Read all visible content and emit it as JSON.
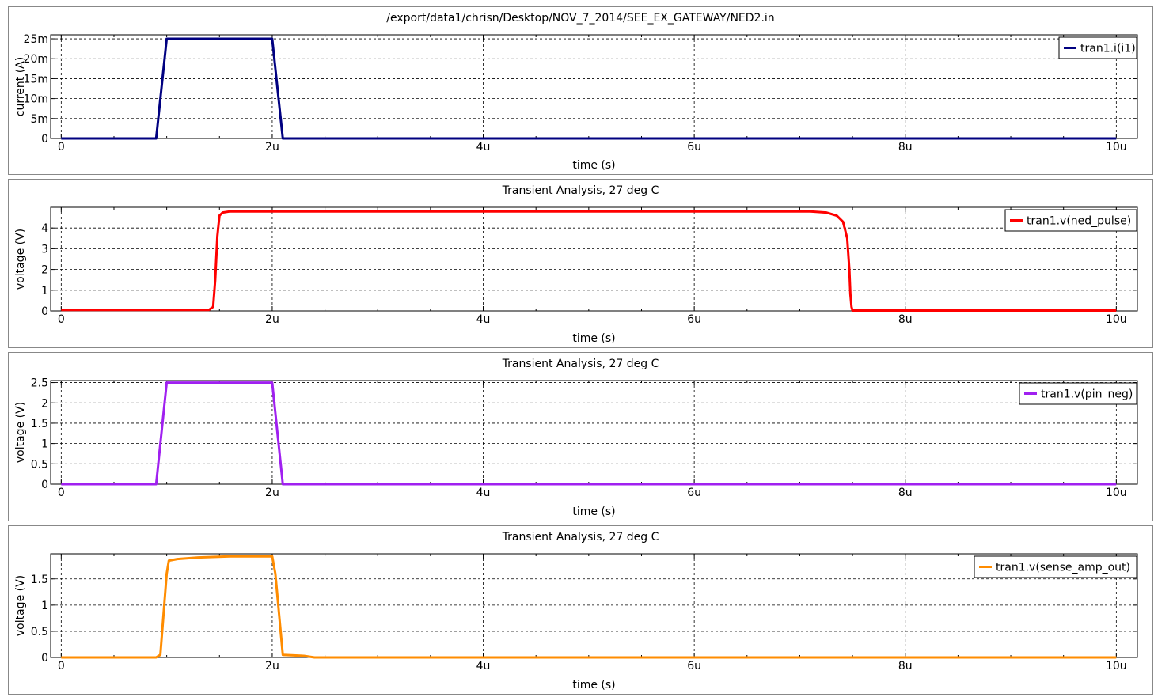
{
  "chart_data": [
    {
      "type": "line",
      "title": "/export/data1/chrisn/Desktop/NOV_7_2014/SEE_EX_GATEWAY/NED2.in",
      "xlabel": "time (s)",
      "ylabel": "current (A)",
      "xlim": [
        -0.1,
        10.2
      ],
      "ylim": [
        0,
        0.026
      ],
      "x_ticks": [
        0,
        2,
        4,
        6,
        8,
        10
      ],
      "x_tick_labels": [
        "0",
        "2u",
        "4u",
        "6u",
        "8u",
        "10u"
      ],
      "y_ticks": [
        0,
        0.005,
        0.01,
        0.015,
        0.02,
        0.025
      ],
      "y_tick_labels": [
        "0",
        "5m",
        "10m",
        "15m",
        "20m",
        "25m"
      ],
      "grid": true,
      "legend_position": "top-right",
      "series": [
        {
          "name": "tran1.i(i1)",
          "color": "#000080",
          "x": [
            0,
            0.9,
            1.0,
            2.0,
            2.1,
            10
          ],
          "y": [
            0,
            0,
            0.025,
            0.025,
            0,
            0
          ]
        }
      ]
    },
    {
      "type": "line",
      "title": "Transient Analysis, 27 deg C",
      "xlabel": "time (s)",
      "ylabel": "voltage (V)",
      "xlim": [
        -0.1,
        10.2
      ],
      "ylim": [
        0,
        5.0
      ],
      "x_ticks": [
        0,
        2,
        4,
        6,
        8,
        10
      ],
      "x_tick_labels": [
        "0",
        "2u",
        "4u",
        "6u",
        "8u",
        "10u"
      ],
      "y_ticks": [
        0,
        1,
        2,
        3,
        4
      ],
      "y_tick_labels": [
        "0",
        "1",
        "2",
        "3",
        "4"
      ],
      "grid": true,
      "legend_position": "top-right",
      "series": [
        {
          "name": "tran1.v(ned_pulse)",
          "color": "#ff0000",
          "x": [
            0,
            1.4,
            1.44,
            1.46,
            1.48,
            1.5,
            1.53,
            1.6,
            2,
            7.1,
            7.25,
            7.35,
            7.41,
            7.45,
            7.47,
            7.48,
            7.49,
            7.5,
            10
          ],
          "y": [
            0.05,
            0.05,
            0.2,
            1.5,
            3.6,
            4.6,
            4.75,
            4.8,
            4.8,
            4.8,
            4.75,
            4.6,
            4.3,
            3.5,
            2.0,
            0.8,
            0.2,
            0.02,
            0.02
          ]
        }
      ]
    },
    {
      "type": "line",
      "title": "Transient Analysis, 27 deg C",
      "xlabel": "time (s)",
      "ylabel": "voltage (V)",
      "xlim": [
        -0.1,
        10.2
      ],
      "ylim": [
        0,
        2.55
      ],
      "x_ticks": [
        0,
        2,
        4,
        6,
        8,
        10
      ],
      "x_tick_labels": [
        "0",
        "2u",
        "4u",
        "6u",
        "8u",
        "10u"
      ],
      "y_ticks": [
        0,
        0.5,
        1,
        1.5,
        2,
        2.5
      ],
      "y_tick_labels": [
        "0",
        "0.5",
        "1",
        "1.5",
        "2",
        "2.5"
      ],
      "grid": true,
      "legend_position": "top-right",
      "series": [
        {
          "name": "tran1.v(pin_neg)",
          "color": "#a020f0",
          "x": [
            0,
            0.9,
            1.0,
            2.0,
            2.1,
            10
          ],
          "y": [
            0,
            0,
            2.5,
            2.5,
            0,
            0
          ]
        }
      ]
    },
    {
      "type": "line",
      "title": "Transient Analysis, 27 deg C",
      "xlabel": "time (s)",
      "ylabel": "voltage (V)",
      "xlim": [
        -0.1,
        10.2
      ],
      "ylim": [
        0,
        1.98
      ],
      "x_ticks": [
        0,
        2,
        4,
        6,
        8,
        10
      ],
      "x_tick_labels": [
        "0",
        "2u",
        "4u",
        "6u",
        "8u",
        "10u"
      ],
      "y_ticks": [
        0,
        0.5,
        1,
        1.5
      ],
      "y_tick_labels": [
        "0",
        "0.5",
        "1",
        "1.5"
      ],
      "grid": true,
      "legend_position": "top-right",
      "series": [
        {
          "name": "tran1.v(sense_amp_out)",
          "color": "#ff8c00",
          "x": [
            0,
            0.9,
            0.94,
            1.0,
            1.02,
            1.1,
            1.3,
            1.6,
            2.0,
            2.03,
            2.1,
            2.3,
            2.4,
            10
          ],
          "y": [
            0,
            0,
            0.05,
            1.6,
            1.85,
            1.88,
            1.91,
            1.93,
            1.93,
            1.6,
            0.05,
            0.03,
            0,
            0
          ]
        }
      ]
    }
  ]
}
